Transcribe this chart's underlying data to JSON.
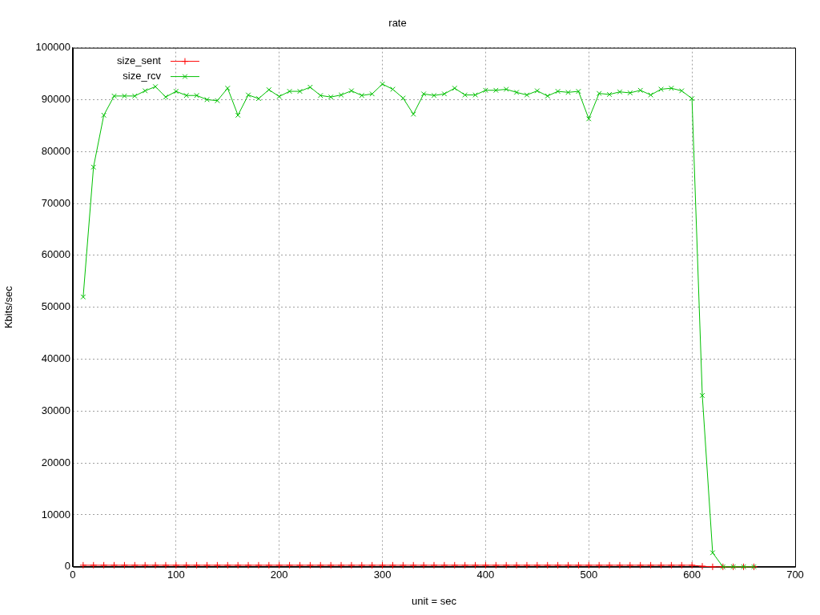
{
  "chart_data": {
    "type": "line",
    "title": "rate",
    "xlabel": "unit = sec",
    "ylabel": "Kbits/sec",
    "x": [
      10,
      20,
      30,
      40,
      50,
      60,
      70,
      80,
      90,
      100,
      110,
      120,
      130,
      140,
      150,
      160,
      170,
      180,
      190,
      200,
      210,
      220,
      230,
      240,
      250,
      260,
      270,
      280,
      290,
      300,
      310,
      320,
      330,
      340,
      350,
      360,
      370,
      380,
      390,
      400,
      410,
      420,
      430,
      440,
      450,
      460,
      470,
      480,
      490,
      500,
      510,
      520,
      530,
      540,
      550,
      560,
      570,
      580,
      590,
      600,
      610,
      620,
      630,
      640,
      650,
      660
    ],
    "series": [
      {
        "name": "size_sent",
        "color": "#ff0000",
        "marker": "plus",
        "values": [
          300,
          300,
          300,
          300,
          300,
          300,
          300,
          300,
          300,
          300,
          300,
          300,
          300,
          300,
          300,
          300,
          300,
          300,
          300,
          300,
          300,
          300,
          300,
          300,
          300,
          300,
          300,
          300,
          300,
          300,
          300,
          300,
          300,
          300,
          300,
          300,
          300,
          300,
          300,
          300,
          300,
          300,
          300,
          300,
          300,
          300,
          300,
          300,
          300,
          300,
          300,
          300,
          300,
          300,
          300,
          300,
          300,
          300,
          300,
          300,
          100,
          0,
          0,
          0,
          0,
          0
        ]
      },
      {
        "name": "size_rcv",
        "color": "#00c000",
        "values": [
          52000,
          77000,
          87000,
          90700,
          90700,
          90700,
          91700,
          92500,
          90500,
          91600,
          90800,
          90800,
          90000,
          89800,
          92200,
          87000,
          90900,
          90200,
          91900,
          90600,
          91600,
          91600,
          92400,
          90800,
          90500,
          90900,
          91700,
          90800,
          91100,
          93000,
          92000,
          90300,
          87200,
          91100,
          90800,
          91100,
          92200,
          90900,
          90900,
          91800,
          91800,
          92000,
          91400,
          90900,
          91700,
          90700,
          91600,
          91400,
          91600,
          86300,
          91200,
          91000,
          91500,
          91300,
          91800,
          90900,
          92000,
          92200,
          91700,
          90200,
          33000,
          2700,
          0,
          0,
          0,
          0
        ]
      }
    ],
    "xlim": [
      0,
      700
    ],
    "xticks": [
      0,
      100,
      200,
      300,
      400,
      500,
      600,
      700
    ],
    "ylim": [
      0,
      100000
    ],
    "yticks": [
      0,
      10000,
      20000,
      30000,
      40000,
      50000,
      60000,
      70000,
      80000,
      90000,
      100000
    ],
    "grid": true,
    "legend": "top left",
    "marker": "cross",
    "line_style": "solid"
  }
}
